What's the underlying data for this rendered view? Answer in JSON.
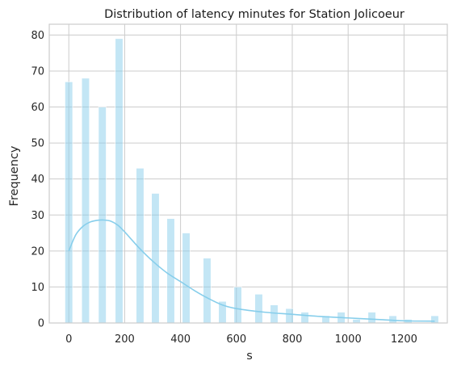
{
  "chart_data": {
    "type": "bar",
    "title": "Distribution of latency minutes for Station Jolicoeur",
    "xlabel": "s",
    "ylabel": "Frequency",
    "xlim": [
      -70,
      1355
    ],
    "ylim": [
      0,
      83
    ],
    "grid": true,
    "xticks": [
      0,
      200,
      400,
      600,
      800,
      1000,
      1200
    ],
    "yticks": [
      0,
      10,
      20,
      30,
      40,
      50,
      60,
      70,
      80
    ],
    "bar_color": "#87ceeb",
    "kde_color": "#87ceeb",
    "bins": [
      {
        "x": 0,
        "count": 67
      },
      {
        "x": 60,
        "count": 68
      },
      {
        "x": 120,
        "count": 60
      },
      {
        "x": 180,
        "count": 79
      },
      {
        "x": 255,
        "count": 43
      },
      {
        "x": 310,
        "count": 36
      },
      {
        "x": 365,
        "count": 29
      },
      {
        "x": 420,
        "count": 25
      },
      {
        "x": 495,
        "count": 18
      },
      {
        "x": 550,
        "count": 6
      },
      {
        "x": 605,
        "count": 10
      },
      {
        "x": 680,
        "count": 8
      },
      {
        "x": 735,
        "count": 5
      },
      {
        "x": 790,
        "count": 4
      },
      {
        "x": 845,
        "count": 3
      },
      {
        "x": 920,
        "count": 2
      },
      {
        "x": 975,
        "count": 3
      },
      {
        "x": 1030,
        "count": 1
      },
      {
        "x": 1085,
        "count": 3
      },
      {
        "x": 1160,
        "count": 2
      },
      {
        "x": 1215,
        "count": 1
      },
      {
        "x": 1310,
        "count": 2
      }
    ],
    "kde": {
      "x": [
        0,
        25,
        50,
        75,
        100,
        125,
        150,
        175,
        200,
        250,
        300,
        350,
        400,
        450,
        500,
        550,
        600,
        700,
        800,
        900,
        1000,
        1100,
        1200,
        1310
      ],
      "y": [
        20,
        24.5,
        26.8,
        28,
        28.5,
        28.6,
        28.3,
        27.2,
        25.3,
        21,
        17.2,
        14,
        11.5,
        9,
        6.8,
        5,
        4,
        3,
        2.4,
        1.8,
        1.4,
        1,
        0.6,
        0.5
      ]
    }
  }
}
